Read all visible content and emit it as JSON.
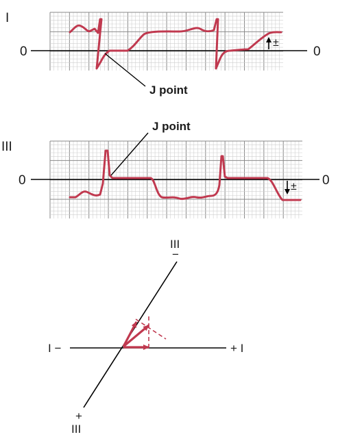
{
  "strip_top": {
    "lead_label": "I",
    "zero_left": "0",
    "zero_right": "0",
    "j_point_label": "J point",
    "shift_label": "±"
  },
  "strip_bottom": {
    "lead_label": "III",
    "zero_left": "0",
    "zero_right": "0",
    "j_point_label": "J point",
    "shift_label": "±"
  },
  "axis_diagram": {
    "lead_I_neg": "I −",
    "lead_I_pos": "+ I",
    "lead_III_top_label": "III",
    "lead_III_top_sign": "−",
    "lead_III_bottom_sign": "+",
    "lead_III_bottom_label": "III"
  },
  "colors": {
    "trace": "#c0394f",
    "grid_major": "#8a8a8a",
    "grid_minor": "#cfcfcf",
    "baseline": "#000000"
  }
}
